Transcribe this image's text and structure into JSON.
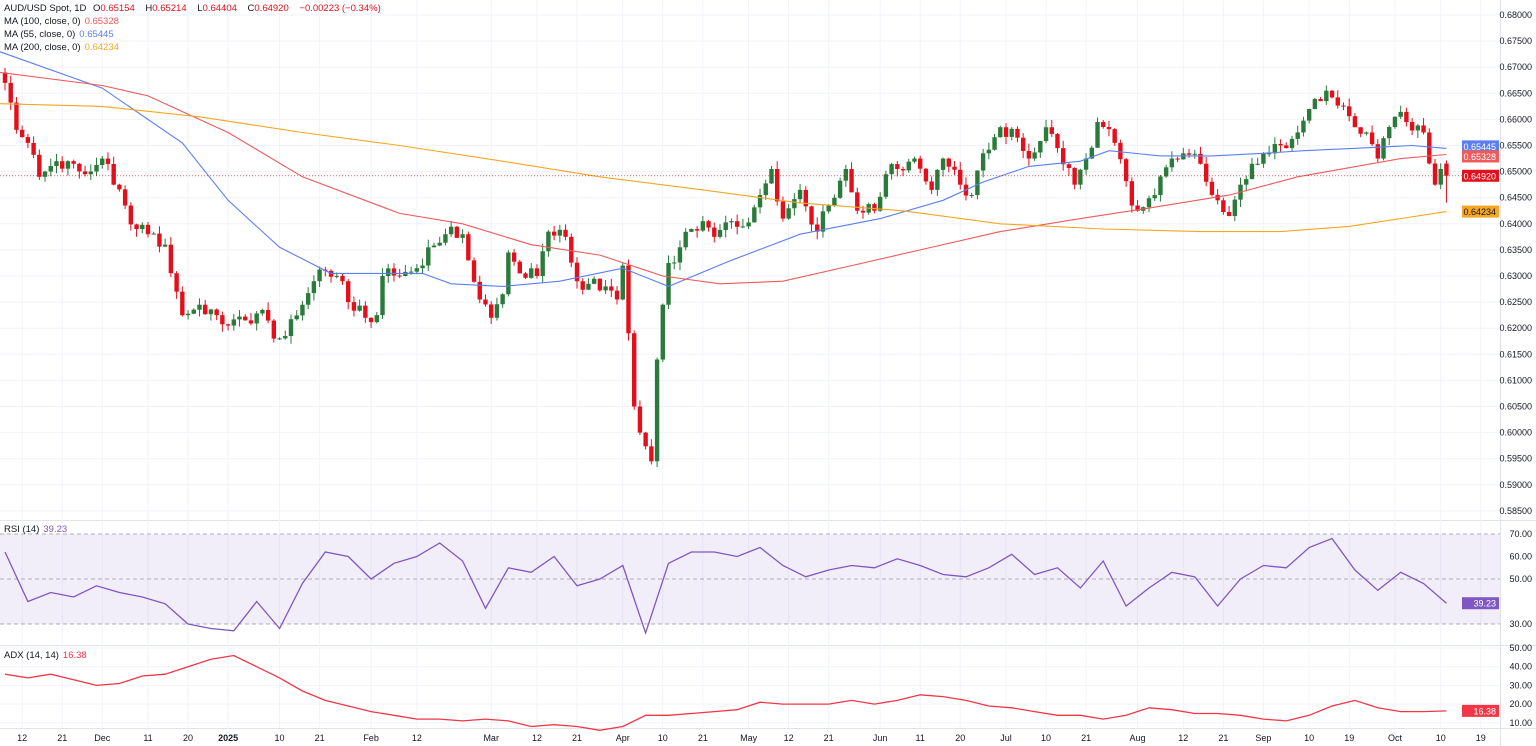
{
  "legend": {
    "symbol": "AUD/USD Spot, 1D",
    "o_label": "O",
    "open": "0.65154",
    "h_label": "H",
    "high": "0.65214",
    "l_label": "L",
    "low": "0.64404",
    "c_label": "C",
    "close": "0.64920",
    "change": "−0.00223 (−0.34%)",
    "ma100_label": "MA (100, close, 0)",
    "ma100_value": "0.65328",
    "ma55_label": "MA (55, close, 0)",
    "ma55_value": "0.65445",
    "ma200_label": "MA (200, close, 0)",
    "ma200_value": "0.64234",
    "rsi_label": "RSI (14)",
    "rsi_value": "39.23",
    "adx_label": "ADX (14, 14)",
    "adx_value": "16.38"
  },
  "colors": {
    "up": "#2a7a3b",
    "down": "#e3101c",
    "ma100": "#ef5a5a",
    "ma55": "#5b7ff0",
    "ma200": "#f5a623",
    "rsi": "#7e57c2",
    "adx": "#f23645",
    "grid": "#f0f3fa"
  },
  "chart_data": [
    {
      "type": "candlestick",
      "title": "AUD/USD Spot, 1D",
      "x_unit": "bar index (trading days)",
      "bars": 253,
      "ylim": [
        0.5835,
        0.6815
      ],
      "y_ticks": [
        "0.68000",
        "0.67500",
        "0.67000",
        "0.66500",
        "0.66000",
        "0.65500",
        "0.65000",
        "0.64500",
        "0.64000",
        "0.63500",
        "0.63000",
        "0.62500",
        "0.62000",
        "0.61500",
        "0.61000",
        "0.60500",
        "0.60000",
        "0.59500",
        "0.59000",
        "0.58500"
      ],
      "x_ticks": [
        {
          "bar": 3,
          "label": "12"
        },
        {
          "bar": 10,
          "label": "21"
        },
        {
          "bar": 17,
          "label": "Dec"
        },
        {
          "bar": 25,
          "label": "11"
        },
        {
          "bar": 32,
          "label": "20"
        },
        {
          "bar": 39,
          "label": "2025",
          "bold": true
        },
        {
          "bar": 48,
          "label": "10"
        },
        {
          "bar": 55,
          "label": "21"
        },
        {
          "bar": 64,
          "label": "Feb"
        },
        {
          "bar": 72,
          "label": "12"
        },
        {
          "bar": 85,
          "label": "Mar"
        },
        {
          "bar": 93,
          "label": "12"
        },
        {
          "bar": 100,
          "label": "21"
        },
        {
          "bar": 108,
          "label": "Apr"
        },
        {
          "bar": 115,
          "label": "10"
        },
        {
          "bar": 122,
          "label": "21"
        },
        {
          "bar": 130,
          "label": "May"
        },
        {
          "bar": 137,
          "label": "12"
        },
        {
          "bar": 144,
          "label": "21"
        },
        {
          "bar": 153,
          "label": "Jun"
        },
        {
          "bar": 160,
          "label": "11"
        },
        {
          "bar": 167,
          "label": "20"
        },
        {
          "bar": 175,
          "label": "Jul"
        },
        {
          "bar": 182,
          "label": "10"
        },
        {
          "bar": 189,
          "label": "21"
        },
        {
          "bar": 198,
          "label": "Aug"
        },
        {
          "bar": 206,
          "label": "12"
        },
        {
          "bar": 213,
          "label": "21"
        },
        {
          "bar": 220,
          "label": "Sep"
        },
        {
          "bar": 228,
          "label": "10"
        },
        {
          "bar": 235,
          "label": "19"
        },
        {
          "bar": 243,
          "label": "Oct"
        },
        {
          "bar": 251,
          "label": "10"
        },
        {
          "bar": 258,
          "label": "19"
        }
      ],
      "close_keypoints": [
        [
          0,
          0.667
        ],
        [
          2,
          0.658
        ],
        [
          4,
          0.6555
        ],
        [
          6,
          0.649
        ],
        [
          9,
          0.652
        ],
        [
          11,
          0.652
        ],
        [
          14,
          0.6495
        ],
        [
          17,
          0.6525
        ],
        [
          19,
          0.6475
        ],
        [
          21,
          0.6435
        ],
        [
          23,
          0.639
        ],
        [
          25,
          0.638
        ],
        [
          28,
          0.636
        ],
        [
          30,
          0.627
        ],
        [
          31,
          0.6225
        ],
        [
          34,
          0.6245
        ],
        [
          37,
          0.6225
        ],
        [
          39,
          0.6205
        ],
        [
          42,
          0.6215
        ],
        [
          45,
          0.6235
        ],
        [
          47,
          0.618
        ],
        [
          49,
          0.6185
        ],
        [
          52,
          0.6245
        ],
        [
          54,
          0.629
        ],
        [
          56,
          0.631
        ],
        [
          59,
          0.629
        ],
        [
          60,
          0.625
        ],
        [
          63,
          0.622
        ],
        [
          65,
          0.6225
        ],
        [
          66,
          0.63
        ],
        [
          69,
          0.63
        ],
        [
          72,
          0.6315
        ],
        [
          74,
          0.6355
        ],
        [
          77,
          0.638
        ],
        [
          80,
          0.638
        ],
        [
          81,
          0.633
        ],
        [
          83,
          0.6255
        ],
        [
          85,
          0.622
        ],
        [
          87,
          0.6265
        ],
        [
          88,
          0.6345
        ],
        [
          90,
          0.6305
        ],
        [
          93,
          0.63
        ],
        [
          95,
          0.6385
        ],
        [
          98,
          0.6375
        ],
        [
          100,
          0.629
        ],
        [
          102,
          0.6285
        ],
        [
          105,
          0.628
        ],
        [
          107,
          0.6255
        ],
        [
          108,
          0.632
        ],
        [
          110,
          0.605
        ],
        [
          111,
          0.6
        ],
        [
          113,
          0.5945
        ],
        [
          114,
          0.614
        ],
        [
          115,
          0.6245
        ],
        [
          116,
          0.6325
        ],
        [
          118,
          0.6355
        ],
        [
          120,
          0.639
        ],
        [
          122,
          0.6405
        ],
        [
          124,
          0.6375
        ],
        [
          127,
          0.6405
        ],
        [
          129,
          0.6395
        ],
        [
          132,
          0.6455
        ],
        [
          134,
          0.6505
        ],
        [
          136,
          0.641
        ],
        [
          139,
          0.6465
        ],
        [
          142,
          0.6385
        ],
        [
          144,
          0.6435
        ],
        [
          147,
          0.6505
        ],
        [
          149,
          0.6425
        ],
        [
          152,
          0.6425
        ],
        [
          154,
          0.6495
        ],
        [
          156,
          0.6505
        ],
        [
          159,
          0.6525
        ],
        [
          162,
          0.6465
        ],
        [
          164,
          0.6525
        ],
        [
          167,
          0.6475
        ],
        [
          169,
          0.6455
        ],
        [
          171,
          0.6535
        ],
        [
          174,
          0.6585
        ],
        [
          177,
          0.6565
        ],
        [
          179,
          0.6525
        ],
        [
          182,
          0.6585
        ],
        [
          184,
          0.6545
        ],
        [
          187,
          0.6475
        ],
        [
          189,
          0.6525
        ],
        [
          191,
          0.6595
        ],
        [
          194,
          0.6555
        ],
        [
          197,
          0.6435
        ],
        [
          198,
          0.6425
        ],
        [
          201,
          0.6455
        ],
        [
          204,
          0.6525
        ],
        [
          206,
          0.6535
        ],
        [
          209,
          0.6515
        ],
        [
          212,
          0.6445
        ],
        [
          214,
          0.6415
        ],
        [
          216,
          0.6475
        ],
        [
          219,
          0.6515
        ],
        [
          221,
          0.6535
        ],
        [
          224,
          0.6545
        ],
        [
          226,
          0.6575
        ],
        [
          228,
          0.662
        ],
        [
          231,
          0.6655
        ],
        [
          234,
          0.6625
        ],
        [
          236,
          0.6585
        ],
        [
          238,
          0.6575
        ],
        [
          240,
          0.6525
        ],
        [
          243,
          0.6605
        ],
        [
          245,
          0.6595
        ],
        [
          248,
          0.6575
        ],
        [
          250,
          0.6475
        ],
        [
          251,
          0.6505
        ],
        [
          252,
          0.6492
        ]
      ],
      "last_bar": {
        "open": 0.65154,
        "high": 0.65214,
        "low": 0.64404,
        "close": 0.6492
      },
      "series": [
        {
          "name": "MA (55, close, 0)",
          "color_key": "ma55",
          "points": [
            [
              -1,
              0.673
            ],
            [
              17,
              0.666
            ],
            [
              31,
              0.6555
            ],
            [
              39,
              0.6445
            ],
            [
              48,
              0.6355
            ],
            [
              57,
              0.6305
            ],
            [
              73,
              0.6305
            ],
            [
              78,
              0.6285
            ],
            [
              87,
              0.628
            ],
            [
              97,
              0.629
            ],
            [
              108,
              0.6315
            ],
            [
              116,
              0.628
            ],
            [
              127,
              0.633
            ],
            [
              139,
              0.638
            ],
            [
              153,
              0.641
            ],
            [
              164,
              0.6445
            ],
            [
              171,
              0.648
            ],
            [
              179,
              0.651
            ],
            [
              188,
              0.652
            ],
            [
              193,
              0.654
            ],
            [
              202,
              0.653
            ],
            [
              211,
              0.653
            ],
            [
              220,
              0.6535
            ],
            [
              227,
              0.654
            ],
            [
              237,
              0.6545
            ],
            [
              246,
              0.655
            ],
            [
              252,
              0.65445
            ]
          ]
        },
        {
          "name": "MA (100, close, 0)",
          "color_key": "ma100",
          "points": [
            [
              -1,
              0.669
            ],
            [
              17,
              0.6665
            ],
            [
              25,
              0.6645
            ],
            [
              39,
              0.6575
            ],
            [
              52,
              0.649
            ],
            [
              69,
              0.642
            ],
            [
              80,
              0.64
            ],
            [
              92,
              0.636
            ],
            [
              104,
              0.634
            ],
            [
              115,
              0.63
            ],
            [
              125,
              0.6285
            ],
            [
              136,
              0.629
            ],
            [
              148,
              0.632
            ],
            [
              160,
              0.635
            ],
            [
              174,
              0.6385
            ],
            [
              188,
              0.641
            ],
            [
              200,
              0.643
            ],
            [
              214,
              0.6455
            ],
            [
              226,
              0.649
            ],
            [
              244,
              0.6525
            ],
            [
              252,
              0.65328
            ]
          ]
        },
        {
          "name": "MA (200, close, 0)",
          "color_key": "ma200",
          "points": [
            [
              -1,
              0.663
            ],
            [
              17,
              0.6625
            ],
            [
              34,
              0.6605
            ],
            [
              52,
              0.6575
            ],
            [
              69,
              0.655
            ],
            [
              87,
              0.652
            ],
            [
              104,
              0.649
            ],
            [
              122,
              0.6465
            ],
            [
              139,
              0.644
            ],
            [
              157,
              0.6425
            ],
            [
              174,
              0.64
            ],
            [
              192,
              0.639
            ],
            [
              209,
              0.6385
            ],
            [
              223,
              0.6385
            ],
            [
              235,
              0.6395
            ],
            [
              252,
              0.64234
            ]
          ]
        }
      ],
      "last_price_labels": [
        "0.65445",
        "0.65328",
        "0.64920",
        "0.64234"
      ]
    },
    {
      "type": "line",
      "title": "RSI (14)",
      "x_step_bars": 4,
      "ylim": [
        20,
        75
      ],
      "y_ticks": [
        "70.00",
        "60.00",
        "50.00",
        "30.00"
      ],
      "bands": [
        30,
        50,
        70
      ],
      "values": [
        62,
        40,
        44,
        42,
        47,
        44,
        42,
        39,
        30,
        28,
        27,
        40,
        28,
        48,
        62,
        60,
        50,
        57,
        60,
        66,
        58,
        37,
        55,
        53,
        60,
        47,
        50,
        56,
        26,
        57,
        62,
        62,
        60,
        64,
        56,
        51,
        54,
        56,
        55,
        59,
        56,
        52,
        51,
        55,
        61,
        52,
        55,
        46,
        58,
        38,
        46,
        53,
        51,
        38,
        50,
        56,
        55,
        64,
        68,
        54,
        45,
        53,
        48,
        39.23
      ]
    },
    {
      "type": "line",
      "title": "ADX (14, 14)",
      "x_step_bars": 4,
      "ylim": [
        3,
        55
      ],
      "y_ticks": [
        "50.00",
        "40.00",
        "30.00",
        "20.00",
        "10.00"
      ],
      "values": [
        36,
        34,
        36,
        33,
        30,
        31,
        35,
        36,
        40,
        44,
        46,
        40,
        34,
        27,
        22,
        19,
        16,
        14,
        12,
        12,
        11,
        12,
        11,
        8,
        9,
        8,
        6,
        8,
        14,
        14,
        15,
        16,
        17,
        21,
        20,
        20,
        20,
        22,
        20,
        22,
        25,
        24,
        22,
        19,
        18,
        16,
        14,
        14,
        12,
        14,
        18,
        17,
        15,
        15,
        14,
        12,
        11,
        14,
        19,
        22,
        18,
        16,
        16,
        16.38
      ]
    }
  ]
}
